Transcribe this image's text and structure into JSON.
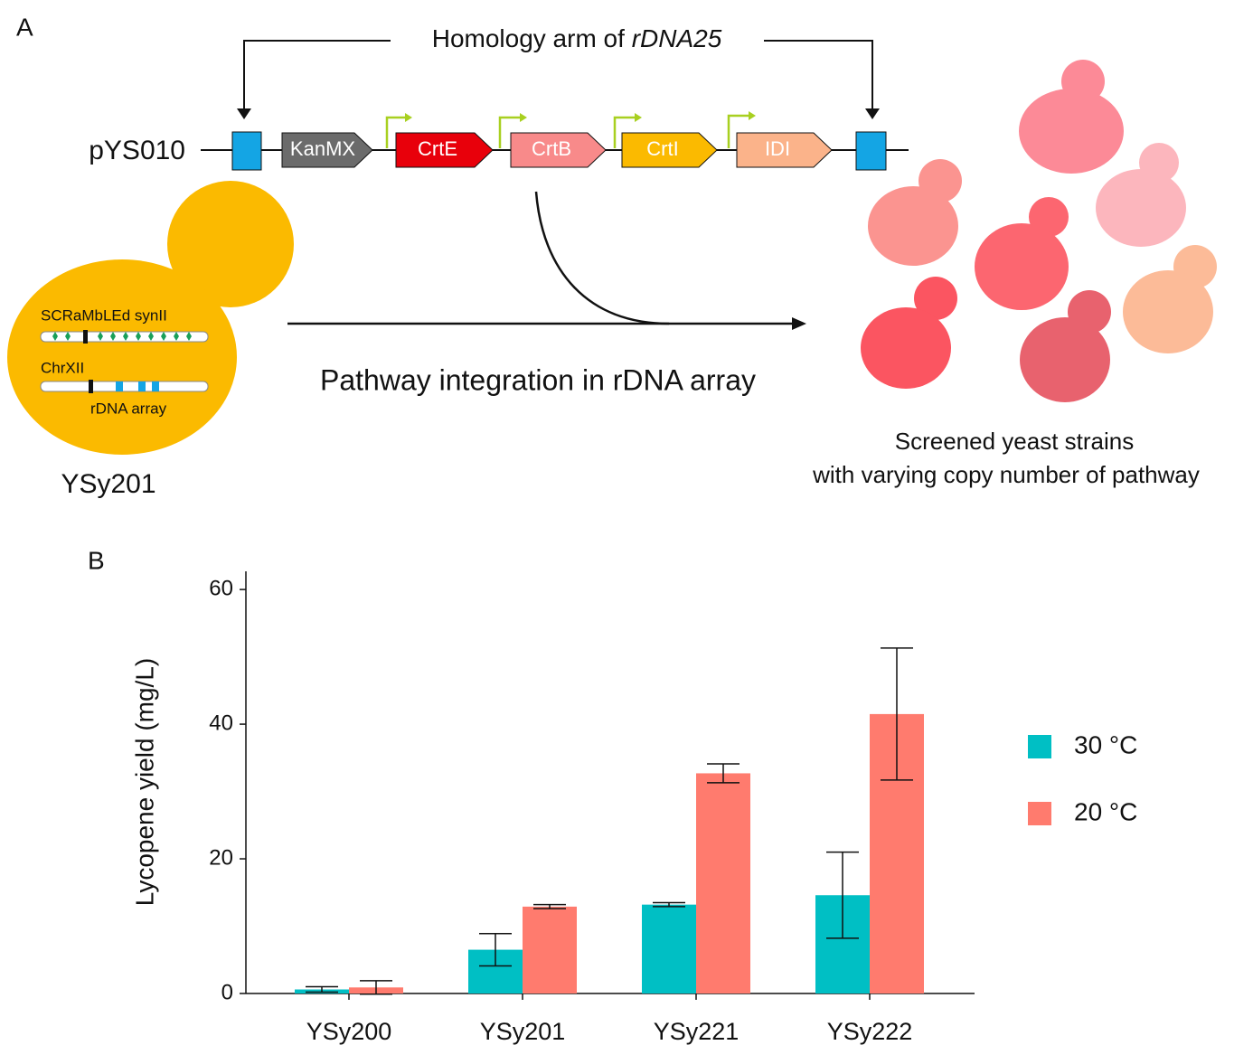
{
  "panel_a": {
    "label": "A",
    "homology_label": "Homology arm of ",
    "homology_italic": "rDNA25",
    "plasmid": "pYS010",
    "genes": [
      "KanMX",
      "CrtE",
      "CrtB",
      "CrtI",
      "IDI"
    ],
    "chromosomes": [
      "SCRaMbLEd synII",
      "ChrXII"
    ],
    "array_label": "rDNA array",
    "strain": "YSy201",
    "arrow_label": "Pathway integration in rDNA array",
    "result_label": [
      "Screened yeast strains",
      "with varying copy number of pathway"
    ]
  },
  "chart_data": {
    "type": "bar",
    "panel_label": "B",
    "ylabel": "Lycopene yield (mg/L)",
    "categories": [
      "YSy200",
      "YSy201",
      "YSy221",
      "YSy222"
    ],
    "series": [
      {
        "name": "30 °C",
        "color": "#00bfc4",
        "values": [
          0.6,
          6.5,
          13.2,
          14.6
        ],
        "errors": [
          0.4,
          2.4,
          0.3,
          6.4
        ]
      },
      {
        "name": "20 °C",
        "color": "#ff7b6e",
        "values": [
          0.9,
          12.9,
          32.7,
          41.5
        ],
        "errors": [
          1.0,
          0.3,
          1.4,
          9.8
        ]
      }
    ],
    "ylim": [
      0,
      62.7
    ],
    "yticks": [
      0,
      20,
      40,
      60
    ],
    "legend": "right"
  }
}
